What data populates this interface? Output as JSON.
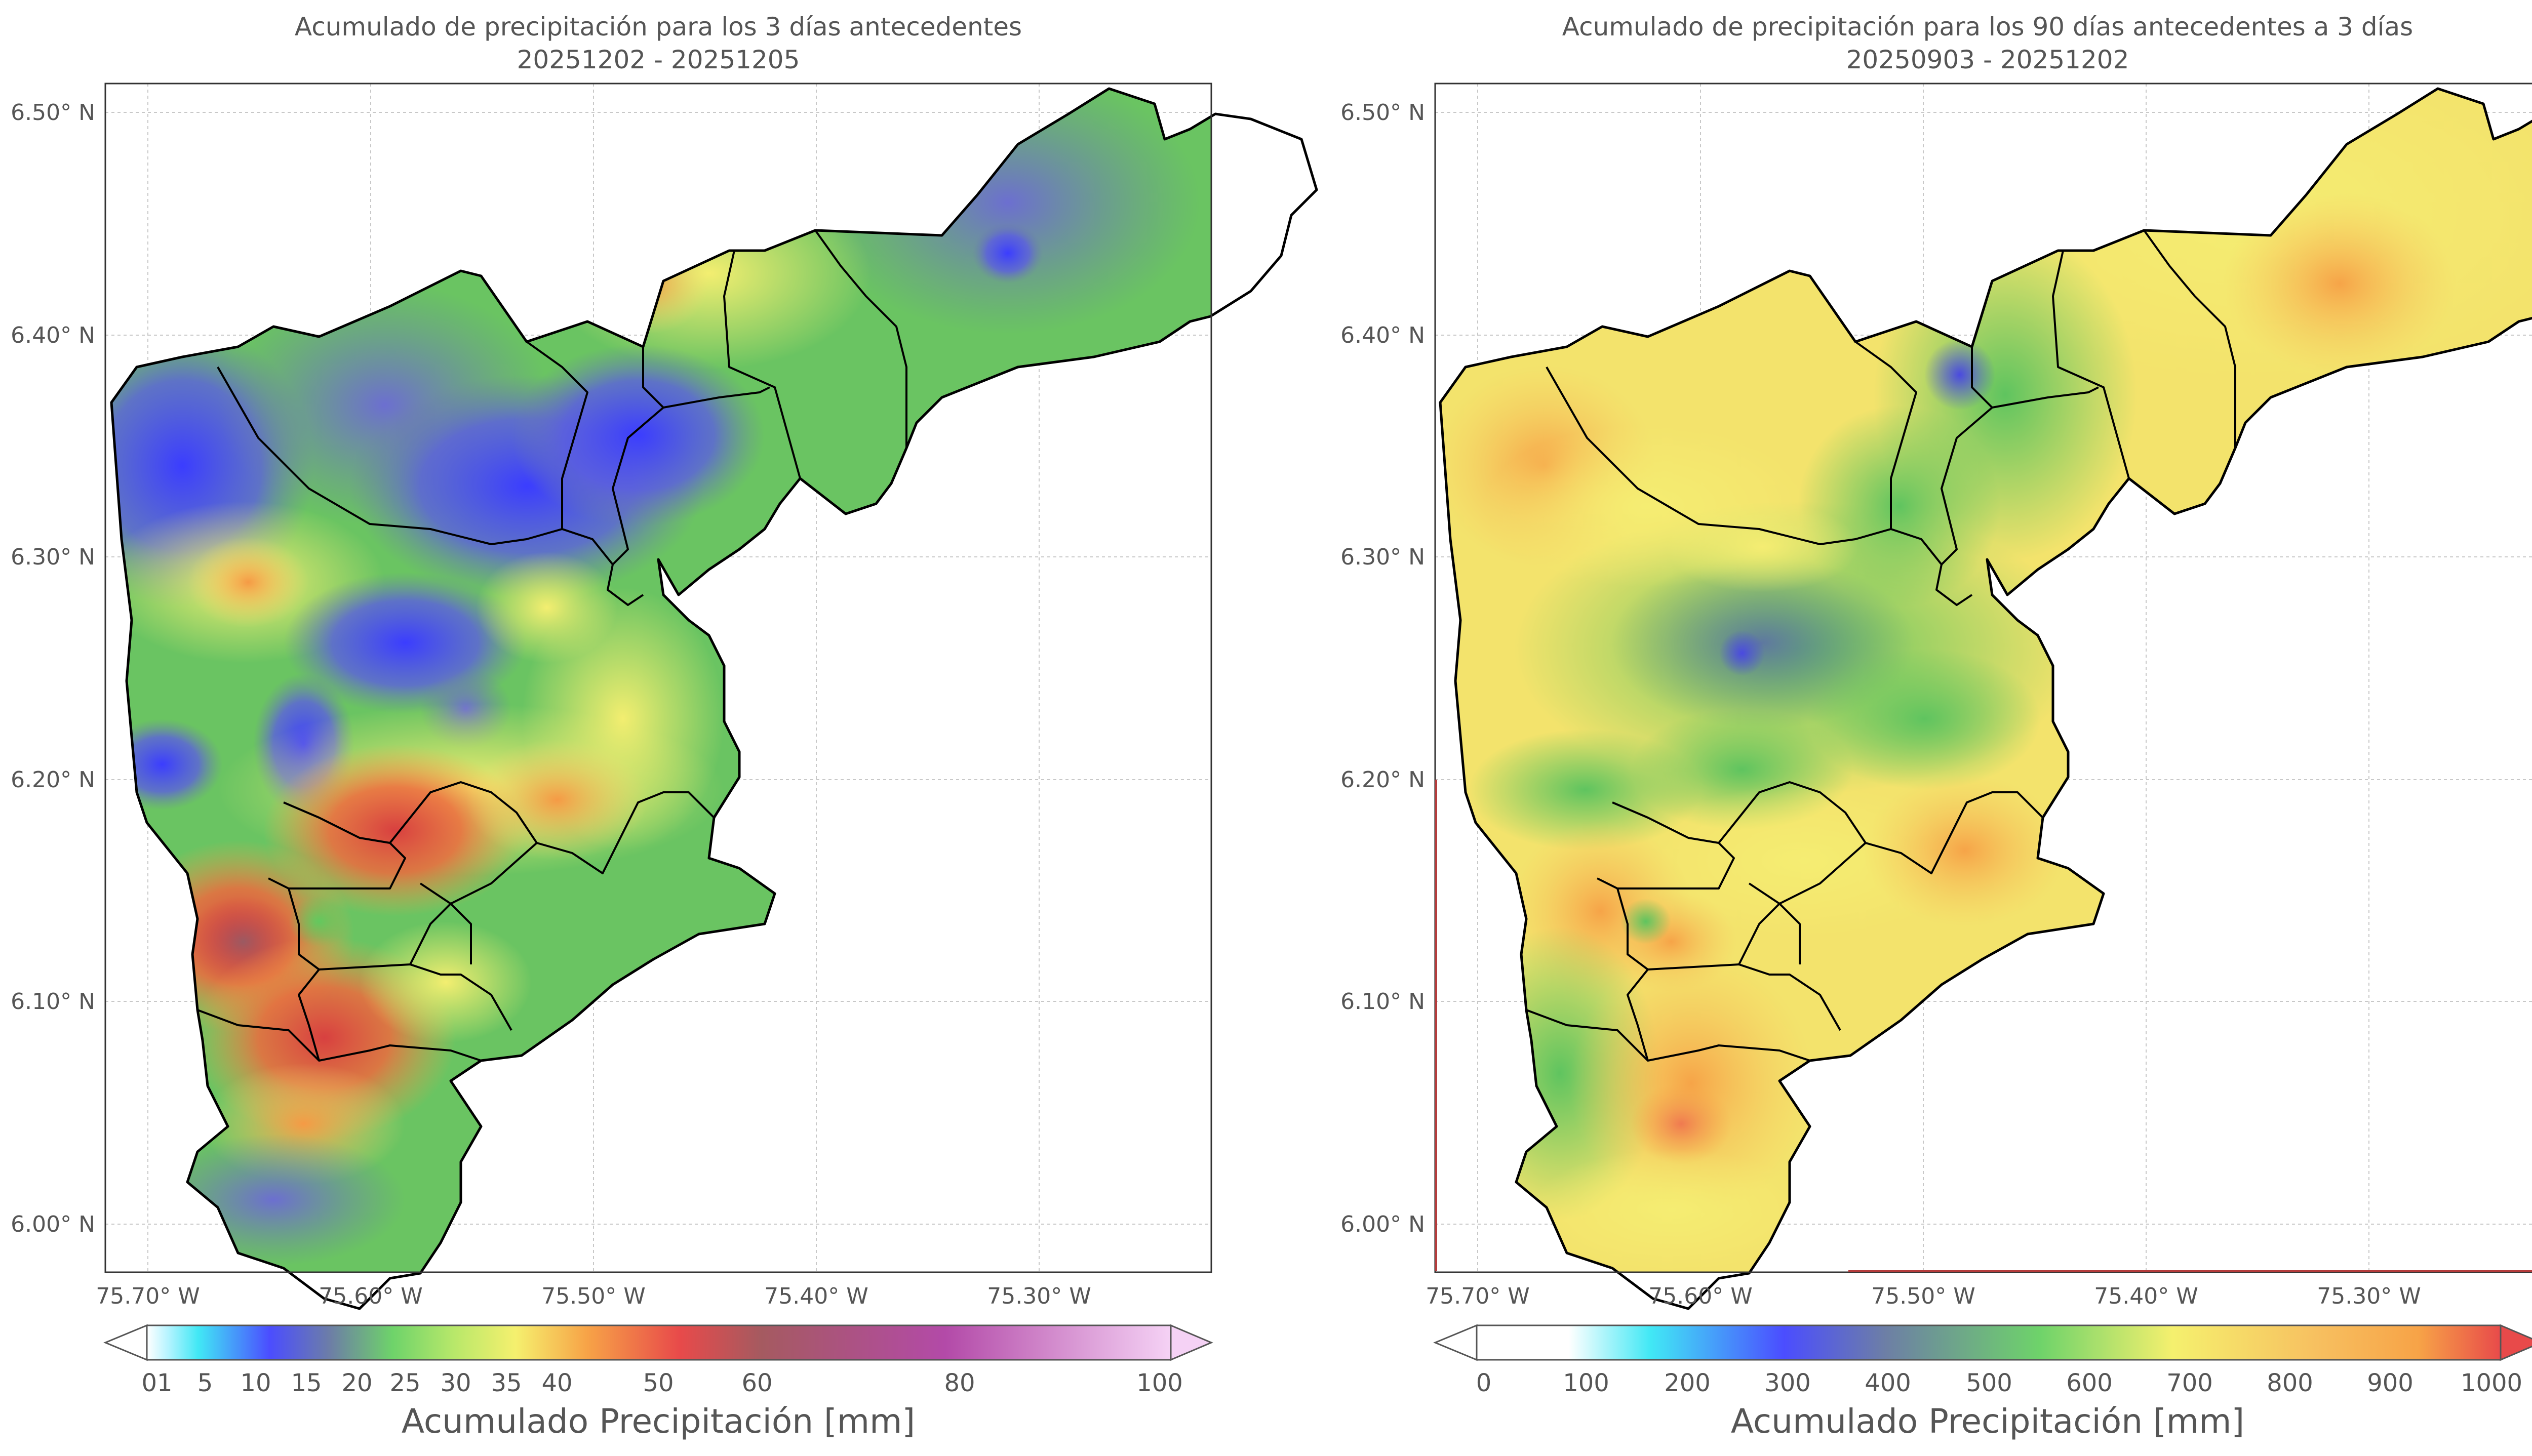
{
  "maps": [
    {
      "title_line1": "Acumulado de precipitación para los 3 días antecedentes",
      "title_line2": "20251202 - 20251205",
      "y_ticks": [
        "6.50° N",
        "6.40° N",
        "6.30° N",
        "6.20° N",
        "6.10° N",
        "6.00° N"
      ],
      "x_ticks": [
        "75.70° W",
        "75.60° W",
        "75.50° W",
        "75.40° W",
        "75.30° W"
      ],
      "colorbar_ticks": [
        "01",
        "5",
        "10",
        "15",
        "20",
        "25",
        "30",
        "35",
        "40",
        "50",
        "60",
        "80",
        "100"
      ],
      "colorbar_label": "Acumulado Precipitación [mm]"
    },
    {
      "title_line1": "Acumulado de precipitación para los 90 días antecedentes a 3 días",
      "title_line2": "20250903 - 20251202",
      "y_ticks": [
        "6.50° N",
        "6.40° N",
        "6.30° N",
        "6.20° N",
        "6.10° N",
        "6.00° N"
      ],
      "x_ticks": [
        "75.70° W",
        "75.60° W",
        "75.50° W",
        "75.40° W",
        "75.30° W"
      ],
      "colorbar_ticks": [
        "0",
        "100",
        "200",
        "300",
        "400",
        "500",
        "600",
        "700",
        "800",
        "900",
        "1000"
      ],
      "colorbar_label": "Acumulado Precipitación [mm]"
    }
  ],
  "colors": {
    "cyan": "#41e8f5",
    "blue": "#4b4dff",
    "slate": "#6d7fa5",
    "green": "#6ed36a",
    "yellow": "#f5f06e",
    "orange": "#f7a347",
    "red": "#e84a4a",
    "magenta": "#b34aa8",
    "pink": "#f5d2f5"
  }
}
